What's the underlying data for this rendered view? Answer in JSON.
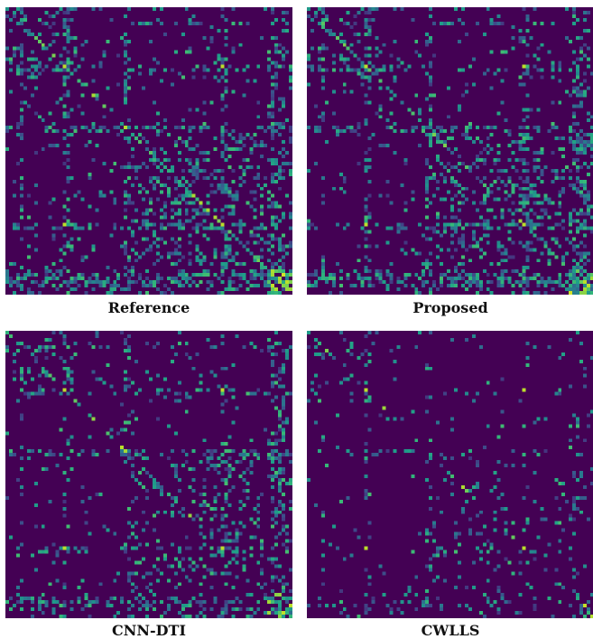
{
  "chart_data": [
    {
      "type": "heatmap",
      "title": "Reference",
      "colormap": "viridis",
      "grid_size": 80,
      "seed": 11,
      "density": 1.0
    },
    {
      "type": "heatmap",
      "title": "Proposed",
      "colormap": "viridis",
      "grid_size": 80,
      "seed": 11,
      "density": 0.95
    },
    {
      "type": "heatmap",
      "title": "CNN-DTI",
      "colormap": "viridis",
      "grid_size": 80,
      "seed": 29,
      "density": 0.7
    },
    {
      "type": "heatmap",
      "title": "CWLLS",
      "colormap": "viridis",
      "grid_size": 80,
      "seed": 53,
      "density": 0.35
    }
  ]
}
